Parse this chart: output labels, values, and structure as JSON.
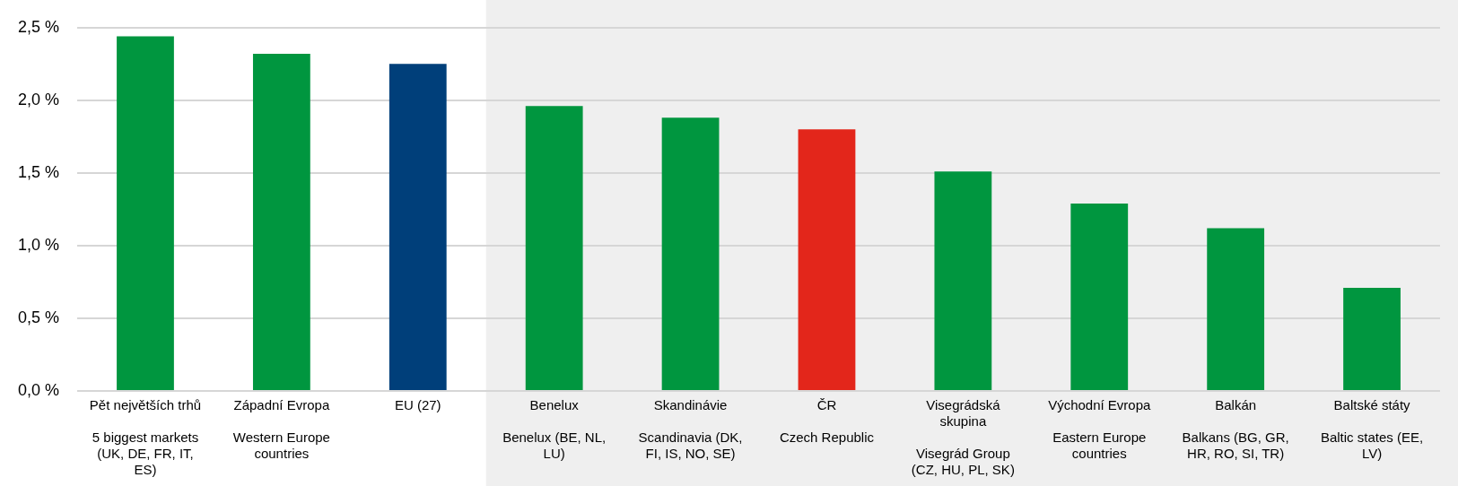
{
  "chart_data": {
    "type": "bar",
    "categories": [
      "Pět největších trhů\n5 biggest markets (UK, DE, FR, IT, ES)",
      "Západní Evropa\nWestern Europe countries",
      "EU (27)",
      "Benelux\nBenelux (BE, NL, LU)",
      "Skandinávie\nScandinavia (DK, FI, IS, NO, SE)",
      "ČR\nCzech Republic",
      "Visegrádská skupina\nVisegrád Group (CZ, HU, PL, SK)",
      "Východní Evropa\nEastern Europe countries",
      "Balkán\nBalkans (BG, GR, HR, RO, SI, TR)",
      "Baltské státy\nBaltic states (EE, LV)"
    ],
    "values": [
      2.44,
      2.32,
      2.25,
      1.96,
      1.88,
      1.8,
      1.51,
      1.29,
      1.12,
      0.71
    ],
    "colors": [
      "#00963f",
      "#00963f",
      "#003f7a",
      "#00963f",
      "#00963f",
      "#e3261b",
      "#00963f",
      "#00963f",
      "#00963f",
      "#00963f"
    ],
    "ylim": [
      0,
      2.5
    ],
    "yticks": [
      {
        "value": 0,
        "label": "0,0 %"
      },
      {
        "value": 0.5,
        "label": "0,5 %"
      },
      {
        "value": 1,
        "label": "1,0 %"
      },
      {
        "value": 1.5,
        "label": "1,5 %"
      },
      {
        "value": 2,
        "label": "2,0 %"
      },
      {
        "value": 2.5,
        "label": "2,5 %"
      }
    ],
    "grid": "y",
    "bands": [
      {
        "axis": "x",
        "from": "Benelux\nBenelux (BE, NL, LU)",
        "to": "Baltské státy\nBaltic states (EE, LV)",
        "color": "#efefef"
      }
    ]
  }
}
